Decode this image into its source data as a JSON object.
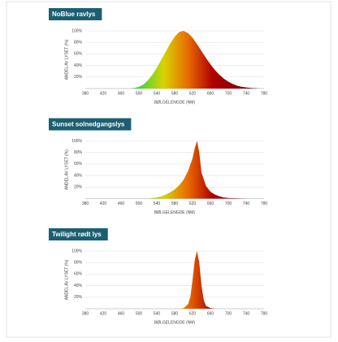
{
  "chart_data": [
    {
      "type": "area",
      "title": "NoBlue ravlys",
      "x_label": "BØLGELENGDE (NM)",
      "y_label": "ANDEL AV LYSET (%)",
      "x": [
        480,
        490,
        500,
        510,
        520,
        530,
        540,
        550,
        560,
        570,
        580,
        590,
        600,
        610,
        620,
        630,
        640,
        650,
        660,
        670,
        680,
        690,
        700,
        710,
        720,
        730,
        740,
        750,
        760,
        770,
        780
      ],
      "values": [
        0,
        1,
        3,
        7,
        14,
        24,
        36,
        50,
        64,
        78,
        90,
        98,
        100,
        96,
        88,
        77,
        65,
        53,
        42,
        32,
        24,
        17,
        12,
        8,
        5,
        3,
        2,
        1,
        0.5,
        0,
        0
      ],
      "xlim": [
        380,
        780
      ],
      "xticks": [
        380,
        420,
        460,
        500,
        540,
        580,
        620,
        660,
        700,
        740,
        780
      ],
      "ylim": [
        0,
        100
      ],
      "yticks": [
        {
          "value": 20,
          "label": "20%"
        },
        {
          "value": 40,
          "label": "40%"
        },
        {
          "value": 60,
          "label": "60%"
        },
        {
          "value": 80,
          "label": "80%"
        },
        {
          "value": 100,
          "label": "100%"
        }
      ],
      "grid": true,
      "gradient": [
        "#3fd43f",
        "#d8d400",
        "#e86a00",
        "#b00000",
        "#8a0000"
      ]
    },
    {
      "type": "area",
      "title": "Sunset solnedgangslys",
      "x_label": "BØLGELENGDE (NM)",
      "y_label": "ANDEL AV LYSET (%)",
      "x": [
        520,
        530,
        540,
        550,
        560,
        570,
        580,
        590,
        600,
        610,
        620,
        625,
        630,
        635,
        640,
        650,
        660,
        670,
        680,
        690,
        700,
        720,
        740
      ],
      "values": [
        0,
        1,
        2,
        4,
        7,
        11,
        16,
        23,
        33,
        48,
        70,
        88,
        100,
        80,
        45,
        22,
        12,
        7,
        4,
        2,
        1,
        0.5,
        0
      ],
      "xlim": [
        380,
        780
      ],
      "xticks": [
        380,
        420,
        460,
        500,
        540,
        580,
        620,
        660,
        700,
        740,
        780
      ],
      "ylim": [
        0,
        100
      ],
      "yticks": [
        {
          "value": 20,
          "label": "20%"
        },
        {
          "value": 40,
          "label": "40%"
        },
        {
          "value": 60,
          "label": "60%"
        },
        {
          "value": 80,
          "label": "80%"
        },
        {
          "value": 100,
          "label": "100%"
        }
      ],
      "grid": true,
      "gradient": [
        "#3fd43f",
        "#d8d400",
        "#e86a00",
        "#b00000",
        "#8a0000"
      ]
    },
    {
      "type": "area",
      "title": "Twilight rødt lys",
      "x_label": "BØLGELENGDE (NM)",
      "y_label": "ANDEL AV LYSET (%)",
      "x": [
        590,
        600,
        610,
        615,
        620,
        625,
        630,
        635,
        640,
        645,
        650,
        660,
        670
      ],
      "values": [
        0,
        1,
        8,
        20,
        50,
        85,
        100,
        80,
        40,
        15,
        5,
        1,
        0
      ],
      "xlim": [
        380,
        780
      ],
      "xticks": [
        380,
        420,
        460,
        500,
        540,
        580,
        620,
        660,
        700,
        740,
        780
      ],
      "ylim": [
        0,
        100
      ],
      "yticks": [
        {
          "value": 20,
          "label": "20%"
        },
        {
          "value": 40,
          "label": "40%"
        },
        {
          "value": 60,
          "label": "60%"
        },
        {
          "value": 80,
          "label": "80%"
        },
        {
          "value": 100,
          "label": "100%"
        }
      ],
      "grid": true,
      "gradient": [
        "#3fd43f",
        "#d8d400",
        "#e86a00",
        "#b00000",
        "#8a0000"
      ]
    }
  ]
}
